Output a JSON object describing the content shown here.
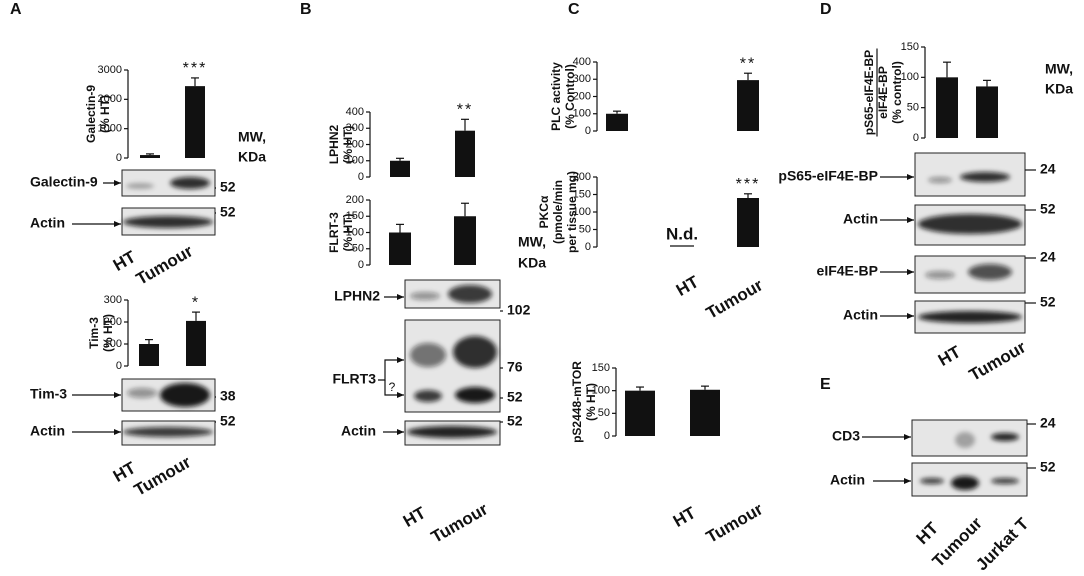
{
  "figure": {
    "panels": [
      {
        "letter": "A",
        "mw_label": [
          "MW,",
          "KDa"
        ],
        "blots": [
          {
            "label": "Galectin-9",
            "mw": [
              "52"
            ]
          },
          {
            "label": "Actin",
            "mw": [
              "52"
            ]
          },
          {
            "label": "Tim-3",
            "mw": [
              "38"
            ]
          },
          {
            "label": "Actin",
            "mw": [
              "52"
            ]
          }
        ],
        "lanes": [
          [
            "HT",
            "Tumour"
          ],
          [
            "HT",
            "Tumour"
          ]
        ]
      },
      {
        "letter": "B",
        "mw_label": [
          "MW,",
          "KDa"
        ],
        "blots": [
          {
            "label": "LPHN2",
            "mw": [
              "102"
            ]
          },
          {
            "label": "FLRT3",
            "mw": [
              "76",
              "52"
            ],
            "note": "?"
          },
          {
            "label": "Actin",
            "mw": [
              "52"
            ]
          }
        ],
        "lanes": [
          [
            "HT",
            "Tumour"
          ]
        ]
      },
      {
        "letter": "C",
        "lanes": [
          [
            "HT",
            "Tumour"
          ],
          [
            "HT",
            "Tumour"
          ]
        ]
      },
      {
        "letter": "D",
        "mw_label": [
          "MW,",
          "KDa"
        ],
        "blots": [
          {
            "label": "pS65-eIF4E-BP",
            "mw": [
              "24"
            ]
          },
          {
            "label": "Actin",
            "mw": [
              "52"
            ]
          },
          {
            "label": "eIF4E-BP",
            "mw": [
              "24"
            ]
          },
          {
            "label": "Actin",
            "mw": [
              "52"
            ]
          }
        ],
        "lanes": [
          [
            "HT",
            "Tumour"
          ]
        ]
      },
      {
        "letter": "E",
        "blots": [
          {
            "label": "CD3",
            "mw": [
              "24"
            ]
          },
          {
            "label": "Actin",
            "mw": [
              "52"
            ]
          }
        ],
        "lanes": [
          [
            "HT",
            "Tumour",
            "Jurkat T"
          ]
        ]
      }
    ]
  },
  "chart_data": [
    {
      "type": "bar",
      "ylabel": [
        "Galectin-9",
        "(% HT)"
      ],
      "categories": [
        null,
        null
      ],
      "values": [
        100,
        2450
      ],
      "errors": [
        40,
        280
      ],
      "annotations": [
        null,
        "***"
      ],
      "ylim": [
        0,
        3000
      ],
      "yticks": [
        0,
        1000,
        2000,
        3000
      ],
      "color": "#111111"
    },
    {
      "type": "bar",
      "ylabel": [
        "Tim-3",
        "(% HT)"
      ],
      "categories": [
        null,
        null
      ],
      "values": [
        100,
        205
      ],
      "errors": [
        20,
        40
      ],
      "annotations": [
        null,
        "*"
      ],
      "ylim": [
        0,
        300
      ],
      "yticks": [
        0,
        100,
        200,
        300
      ],
      "color": "#111111"
    },
    {
      "type": "bar",
      "ylabel": [
        "LPHN2",
        "(% HT)"
      ],
      "categories": [
        null,
        null
      ],
      "values": [
        100,
        285
      ],
      "errors": [
        15,
        70
      ],
      "annotations": [
        null,
        "**"
      ],
      "ylim": [
        0,
        400
      ],
      "yticks": [
        0,
        100,
        200,
        300,
        400
      ],
      "color": "#111111"
    },
    {
      "type": "bar",
      "ylabel": [
        "FLRT-3",
        "(% HT)"
      ],
      "categories": [
        null,
        null
      ],
      "values": [
        100,
        150
      ],
      "errors": [
        25,
        40
      ],
      "annotations": [
        null,
        null
      ],
      "ylim": [
        0,
        200
      ],
      "yticks": [
        0,
        50,
        100,
        150,
        200
      ],
      "color": "#111111"
    },
    {
      "type": "bar",
      "ylabel": [
        "PLC activity",
        "(% Control)"
      ],
      "categories": [
        null,
        null
      ],
      "values": [
        100,
        295
      ],
      "errors": [
        15,
        40
      ],
      "annotations": [
        null,
        "**"
      ],
      "ylim": [
        0,
        400
      ],
      "yticks": [
        0,
        100,
        200,
        300,
        400
      ],
      "color": "#111111"
    },
    {
      "type": "bar",
      "ylabel": [
        "PKCα",
        "(pmole/min",
        "per tissue mg)"
      ],
      "categories": [
        null,
        null
      ],
      "values": [
        null,
        140
      ],
      "value_labels": [
        "N.d.",
        null
      ],
      "errors": [
        null,
        12
      ],
      "annotations": [
        null,
        "***"
      ],
      "ylim": [
        0,
        200
      ],
      "yticks": [
        0,
        50,
        100,
        150,
        200
      ],
      "color": "#111111"
    },
    {
      "type": "bar",
      "ylabel": [
        "pS2448-mTOR",
        "(% HT)"
      ],
      "categories": [
        null,
        null
      ],
      "values": [
        100,
        102
      ],
      "errors": [
        8,
        8
      ],
      "annotations": [
        null,
        null
      ],
      "ylim": [
        0,
        150
      ],
      "yticks": [
        0,
        50,
        100,
        150
      ],
      "color": "#111111"
    },
    {
      "type": "bar",
      "ylabel": [
        "pS65-eIF4E-BP",
        "eIF4E-BP",
        "(% control)"
      ],
      "categories": [
        null,
        null
      ],
      "values": [
        100,
        85
      ],
      "errors": [
        25,
        10
      ],
      "annotations": [
        null,
        null
      ],
      "ylim": [
        0,
        150
      ],
      "yticks": [
        0,
        50,
        100,
        150
      ],
      "color": "#111111"
    }
  ]
}
